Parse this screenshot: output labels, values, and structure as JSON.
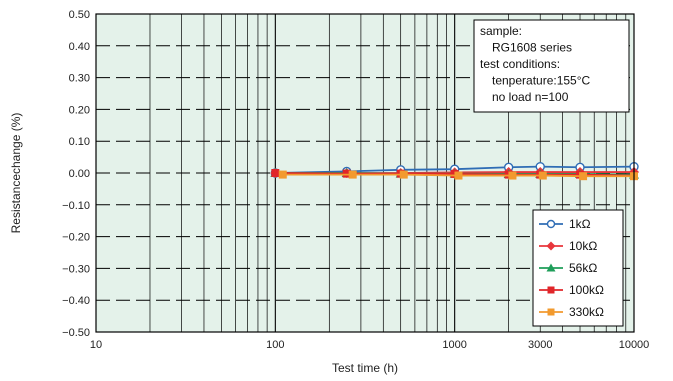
{
  "chart_data": {
    "type": "line",
    "title": "",
    "xlabel": "Test time (h)",
    "ylabel": "Resistancechange (%)",
    "x_scale": "log",
    "xlim": [
      10,
      10000
    ],
    "ylim": [
      -0.5,
      0.5
    ],
    "grid": true,
    "background_color": "#e4f2ea",
    "x_tick_labels": [
      {
        "value": 10,
        "label": "10"
      },
      {
        "value": 100,
        "label": "100"
      },
      {
        "value": 1000,
        "label": "1000"
      },
      {
        "value": 3000,
        "label": "3000"
      },
      {
        "value": 10000,
        "label": "10000"
      }
    ],
    "y_ticks": [
      {
        "value": 0.5,
        "label": "0.50"
      },
      {
        "value": 0.4,
        "label": "0.40"
      },
      {
        "value": 0.3,
        "label": "0.30"
      },
      {
        "value": 0.2,
        "label": "0.20"
      },
      {
        "value": 0.1,
        "label": "0.10"
      },
      {
        "value": 0.0,
        "label": "0.00"
      },
      {
        "value": -0.1,
        "label": "−0.10"
      },
      {
        "value": -0.2,
        "label": "−0.20"
      },
      {
        "value": -0.3,
        "label": "−0.30"
      },
      {
        "value": -0.4,
        "label": "−0.40"
      },
      {
        "value": -0.5,
        "label": "−0.50"
      }
    ],
    "annotation_lines": [
      "sample:",
      "  RG1608 series",
      "test conditions:",
      "  tenperature:155°C",
      "  no load   n=100"
    ],
    "legend_position": "bottom-right",
    "series": [
      {
        "name": "1kΩ",
        "color": "#2f6db5",
        "marker": "circle",
        "x": [
          100,
          250,
          500,
          1000,
          2000,
          3000,
          5000,
          10000
        ],
        "y": [
          0.0,
          0.005,
          0.01,
          0.012,
          0.018,
          0.02,
          0.018,
          0.02
        ]
      },
      {
        "name": "10kΩ",
        "color": "#e8363c",
        "marker": "diamond",
        "x": [
          100,
          250,
          500,
          1000,
          2000,
          3000,
          5000,
          10000
        ],
        "y": [
          0.0,
          0.0,
          0.0,
          0.002,
          0.003,
          0.003,
          0.003,
          0.003
        ]
      },
      {
        "name": "56kΩ",
        "color": "#1f9e5a",
        "marker": "triangle",
        "x": [
          100,
          250,
          500,
          1000,
          2000,
          3000,
          5000,
          10000
        ],
        "y": [
          0.0,
          0.0,
          -0.002,
          -0.002,
          -0.003,
          -0.003,
          -0.003,
          -0.005
        ]
      },
      {
        "name": "100kΩ",
        "color": "#e0262a",
        "marker": "square",
        "x": [
          100,
          250,
          500,
          1000,
          2000,
          3000,
          5000,
          10000
        ],
        "y": [
          0.0,
          -0.002,
          -0.002,
          -0.003,
          -0.005,
          -0.005,
          -0.005,
          -0.008
        ]
      },
      {
        "name": "330kΩ",
        "color": "#f29a2e",
        "marker": "square",
        "x": [
          110,
          270,
          520,
          1050,
          2100,
          3100,
          5200,
          10000
        ],
        "y": [
          -0.005,
          -0.005,
          -0.005,
          -0.008,
          -0.008,
          -0.008,
          -0.01,
          -0.01
        ]
      }
    ]
  }
}
